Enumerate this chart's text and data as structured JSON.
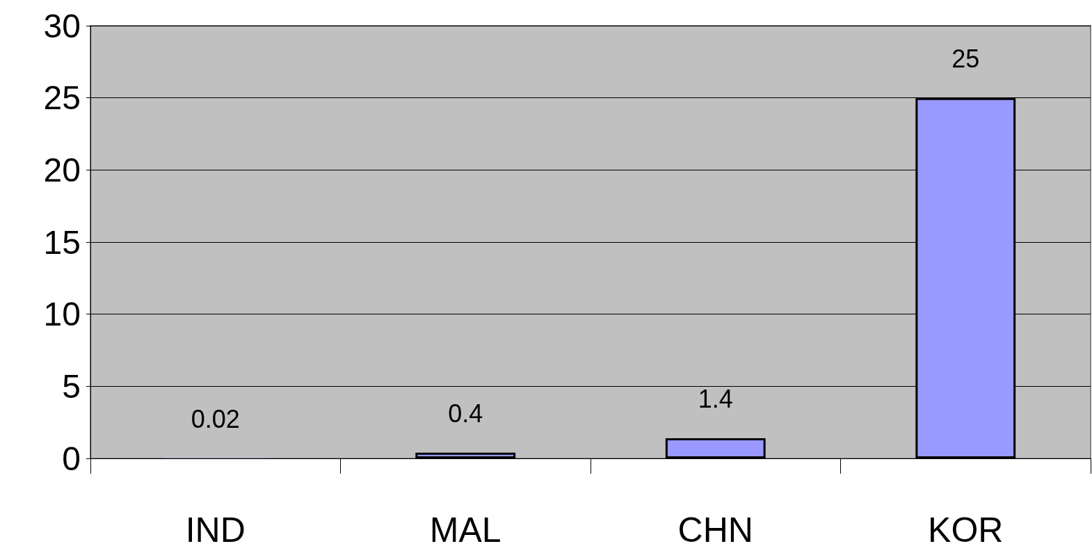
{
  "chart_data": {
    "type": "bar",
    "categories": [
      "IND",
      "MAL",
      "CHN",
      "KOR"
    ],
    "values": [
      0.02,
      0.4,
      1.4,
      25
    ],
    "color": "#9999ff",
    "ylim": [
      0,
      30
    ],
    "yticks": [
      0,
      5,
      10,
      15,
      20,
      25,
      30
    ],
    "grid": "y",
    "data_labels": true
  }
}
